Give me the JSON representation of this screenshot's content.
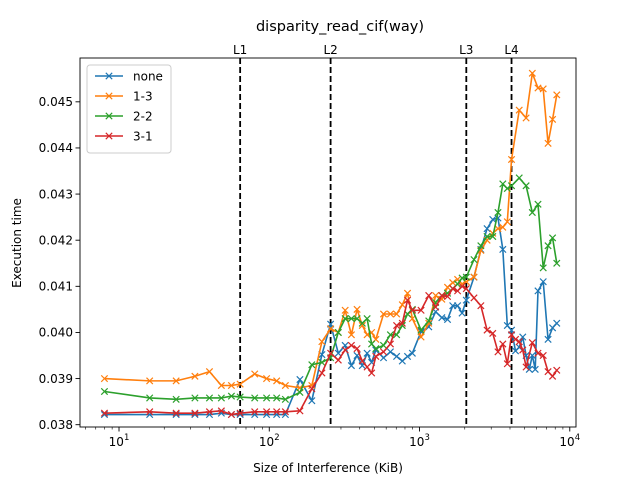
{
  "chart_data": {
    "type": "line",
    "title": "disparity_read_cif(way)",
    "xlabel": "Size of Interference (KiB)",
    "ylabel": "Execution time",
    "xscale": "log",
    "xlim": [
      5.5,
      11000
    ],
    "ylim": [
      0.03795,
      0.04595
    ],
    "x_ticks": [
      {
        "value": 10,
        "label": "10",
        "sup": "1"
      },
      {
        "value": 100,
        "label": "10",
        "sup": "2"
      },
      {
        "value": 1000,
        "label": "10",
        "sup": "3"
      },
      {
        "value": 10000,
        "label": "10",
        "sup": "4"
      }
    ],
    "y_ticks": [
      0.038,
      0.039,
      0.04,
      0.041,
      0.042,
      0.043,
      0.044,
      0.045
    ],
    "y_tick_labels": [
      "0.038",
      "0.039",
      "0.040",
      "0.041",
      "0.042",
      "0.043",
      "0.044",
      "0.045"
    ],
    "grid": false,
    "legend_position": "top-left",
    "reference_lines": [
      {
        "label": "L1",
        "x": 64
      },
      {
        "label": "L2",
        "x": 256
      },
      {
        "label": "L3",
        "x": 2048
      },
      {
        "label": "L4",
        "x": 4096
      }
    ],
    "series": [
      {
        "name": "none",
        "color": "#1f77b4",
        "points": [
          [
            8,
            0.03822
          ],
          [
            16,
            0.03822
          ],
          [
            24,
            0.03822
          ],
          [
            32,
            0.03822
          ],
          [
            40,
            0.03822
          ],
          [
            48,
            0.03825
          ],
          [
            56,
            0.03822
          ],
          [
            64,
            0.03822
          ],
          [
            80,
            0.03822
          ],
          [
            96,
            0.03822
          ],
          [
            112,
            0.03822
          ],
          [
            128,
            0.03822
          ],
          [
            160,
            0.03898
          ],
          [
            192,
            0.03852
          ],
          [
            224,
            0.03952
          ],
          [
            256,
            0.04018
          ],
          [
            288,
            0.03955
          ],
          [
            320,
            0.03972
          ],
          [
            352,
            0.03928
          ],
          [
            384,
            0.0395
          ],
          [
            416,
            0.03928
          ],
          [
            448,
            0.03955
          ],
          [
            480,
            0.03935
          ],
          [
            512,
            0.03962
          ],
          [
            576,
            0.03945
          ],
          [
            640,
            0.03958
          ],
          [
            704,
            0.03948
          ],
          [
            768,
            0.03938
          ],
          [
            832,
            0.03948
          ],
          [
            896,
            0.03955
          ],
          [
            1024,
            0.04002
          ],
          [
            1152,
            0.04012
          ],
          [
            1280,
            0.04045
          ],
          [
            1408,
            0.04032
          ],
          [
            1536,
            0.04028
          ],
          [
            1664,
            0.04058
          ],
          [
            1792,
            0.04058
          ],
          [
            1920,
            0.04042
          ],
          [
            2048,
            0.0407
          ],
          [
            2304,
            0.0412
          ],
          [
            2560,
            0.0418
          ],
          [
            2816,
            0.04225
          ],
          [
            3072,
            0.04245
          ],
          [
            3328,
            0.04248
          ],
          [
            3584,
            0.0418
          ],
          [
            3840,
            0.04015
          ],
          [
            4096,
            0.04005
          ],
          [
            4352,
            0.0396
          ],
          [
            4608,
            0.03968
          ],
          [
            4864,
            0.0399
          ],
          [
            5120,
            0.0395
          ],
          [
            5376,
            0.0392
          ],
          [
            5632,
            0.0395
          ],
          [
            5888,
            0.0392
          ],
          [
            6144,
            0.0409
          ],
          [
            6656,
            0.0411
          ],
          [
            7168,
            0.03985
          ],
          [
            7680,
            0.0401
          ],
          [
            8192,
            0.0402
          ]
        ]
      },
      {
        "name": "1-3",
        "color": "#ff7f0e",
        "points": [
          [
            8,
            0.039
          ],
          [
            16,
            0.03895
          ],
          [
            24,
            0.03895
          ],
          [
            32,
            0.03905
          ],
          [
            40,
            0.03915
          ],
          [
            48,
            0.03885
          ],
          [
            56,
            0.03885
          ],
          [
            64,
            0.03888
          ],
          [
            80,
            0.0391
          ],
          [
            96,
            0.039
          ],
          [
            112,
            0.03895
          ],
          [
            128,
            0.03885
          ],
          [
            160,
            0.0388
          ],
          [
            192,
            0.03885
          ],
          [
            224,
            0.0398
          ],
          [
            256,
            0.04008
          ],
          [
            288,
            0.04
          ],
          [
            320,
            0.04048
          ],
          [
            352,
            0.03995
          ],
          [
            384,
            0.0405
          ],
          [
            416,
            0.04015
          ],
          [
            448,
            0.03995
          ],
          [
            480,
            0.04
          ],
          [
            512,
            0.03985
          ],
          [
            576,
            0.0404
          ],
          [
            640,
            0.0404
          ],
          [
            704,
            0.0404
          ],
          [
            768,
            0.0406
          ],
          [
            832,
            0.04085
          ],
          [
            896,
            0.0403
          ],
          [
            1024,
            0.0399
          ],
          [
            1152,
            0.0402
          ],
          [
            1280,
            0.0408
          ],
          [
            1408,
            0.04072
          ],
          [
            1536,
            0.04098
          ],
          [
            1664,
            0.04108
          ],
          [
            1792,
            0.04115
          ],
          [
            1920,
            0.04105
          ],
          [
            2048,
            0.0411
          ],
          [
            2304,
            0.0412
          ],
          [
            2560,
            0.04178
          ],
          [
            2816,
            0.042
          ],
          [
            3072,
            0.04215
          ],
          [
            3328,
            0.04225
          ],
          [
            3584,
            0.04228
          ],
          [
            3840,
            0.0424
          ],
          [
            4096,
            0.04375
          ],
          [
            4608,
            0.04482
          ],
          [
            5120,
            0.04465
          ],
          [
            5632,
            0.04562
          ],
          [
            6144,
            0.0453
          ],
          [
            6656,
            0.04528
          ],
          [
            7168,
            0.0441
          ],
          [
            7680,
            0.04462
          ],
          [
            8192,
            0.04515
          ]
        ]
      },
      {
        "name": "2-2",
        "color": "#2ca02c",
        "points": [
          [
            8,
            0.03872
          ],
          [
            16,
            0.03858
          ],
          [
            24,
            0.03855
          ],
          [
            32,
            0.03858
          ],
          [
            40,
            0.03858
          ],
          [
            48,
            0.03858
          ],
          [
            56,
            0.03862
          ],
          [
            64,
            0.0386
          ],
          [
            80,
            0.03858
          ],
          [
            96,
            0.03858
          ],
          [
            112,
            0.03858
          ],
          [
            128,
            0.03855
          ],
          [
            160,
            0.0387
          ],
          [
            192,
            0.0393
          ],
          [
            224,
            0.03935
          ],
          [
            256,
            0.03945
          ],
          [
            288,
            0.04
          ],
          [
            320,
            0.0403
          ],
          [
            352,
            0.0403
          ],
          [
            384,
            0.0403
          ],
          [
            416,
            0.0402
          ],
          [
            448,
            0.0403
          ],
          [
            480,
            0.03975
          ],
          [
            512,
            0.03965
          ],
          [
            576,
            0.03972
          ],
          [
            640,
            0.03995
          ],
          [
            704,
            0.03995
          ],
          [
            768,
            0.04015
          ],
          [
            832,
            0.0404
          ],
          [
            896,
            0.0405
          ],
          [
            1024,
            0.04005
          ],
          [
            1152,
            0.04025
          ],
          [
            1280,
            0.04065
          ],
          [
            1408,
            0.0408
          ],
          [
            1536,
            0.04085
          ],
          [
            1664,
            0.04095
          ],
          [
            1792,
            0.04105
          ],
          [
            1920,
            0.04118
          ],
          [
            2048,
            0.0412
          ],
          [
            2304,
            0.04158
          ],
          [
            2560,
            0.04188
          ],
          [
            2816,
            0.04208
          ],
          [
            3072,
            0.04208
          ],
          [
            3328,
            0.0426
          ],
          [
            3584,
            0.04322
          ],
          [
            3840,
            0.04312
          ],
          [
            4096,
            0.04318
          ],
          [
            4608,
            0.04335
          ],
          [
            5120,
            0.04318
          ],
          [
            5632,
            0.0426
          ],
          [
            6144,
            0.04278
          ],
          [
            6656,
            0.0414
          ],
          [
            7168,
            0.04188
          ],
          [
            7680,
            0.04205
          ],
          [
            8192,
            0.0415
          ]
        ]
      },
      {
        "name": "3-1",
        "color": "#d62728",
        "points": [
          [
            8,
            0.03825
          ],
          [
            16,
            0.03828
          ],
          [
            24,
            0.03825
          ],
          [
            32,
            0.03825
          ],
          [
            40,
            0.03828
          ],
          [
            48,
            0.0383
          ],
          [
            56,
            0.03822
          ],
          [
            64,
            0.03825
          ],
          [
            80,
            0.03828
          ],
          [
            96,
            0.03828
          ],
          [
            112,
            0.03828
          ],
          [
            128,
            0.03828
          ],
          [
            160,
            0.0383
          ],
          [
            192,
            0.03878
          ],
          [
            224,
            0.03912
          ],
          [
            256,
            0.03955
          ],
          [
            288,
            0.0394
          ],
          [
            320,
            0.03962
          ],
          [
            352,
            0.03972
          ],
          [
            384,
            0.03965
          ],
          [
            416,
            0.03938
          ],
          [
            448,
            0.03925
          ],
          [
            480,
            0.03912
          ],
          [
            512,
            0.03948
          ],
          [
            576,
            0.03958
          ],
          [
            640,
            0.03975
          ],
          [
            704,
            0.04015
          ],
          [
            768,
            0.0402
          ],
          [
            832,
            0.0407
          ],
          [
            896,
            0.04048
          ],
          [
            1024,
            0.04048
          ],
          [
            1152,
            0.0408
          ],
          [
            1280,
            0.04055
          ],
          [
            1408,
            0.0408
          ],
          [
            1536,
            0.04078
          ],
          [
            1664,
            0.04095
          ],
          [
            1792,
            0.0409
          ],
          [
            1920,
            0.041
          ],
          [
            2048,
            0.04095
          ],
          [
            2304,
            0.04075
          ],
          [
            2560,
            0.04058
          ],
          [
            2816,
            0.04005
          ],
          [
            3072,
            0.03998
          ],
          [
            3328,
            0.03958
          ],
          [
            3584,
            0.03975
          ],
          [
            3840,
            0.03932
          ],
          [
            4096,
            0.03995
          ],
          [
            4352,
            0.03985
          ],
          [
            4608,
            0.0398
          ],
          [
            4864,
            0.03962
          ],
          [
            5120,
            0.03925
          ],
          [
            5632,
            0.03978
          ],
          [
            6144,
            0.03955
          ],
          [
            6656,
            0.0395
          ],
          [
            7168,
            0.03915
          ],
          [
            7680,
            0.03905
          ],
          [
            8192,
            0.03918
          ]
        ]
      }
    ]
  }
}
